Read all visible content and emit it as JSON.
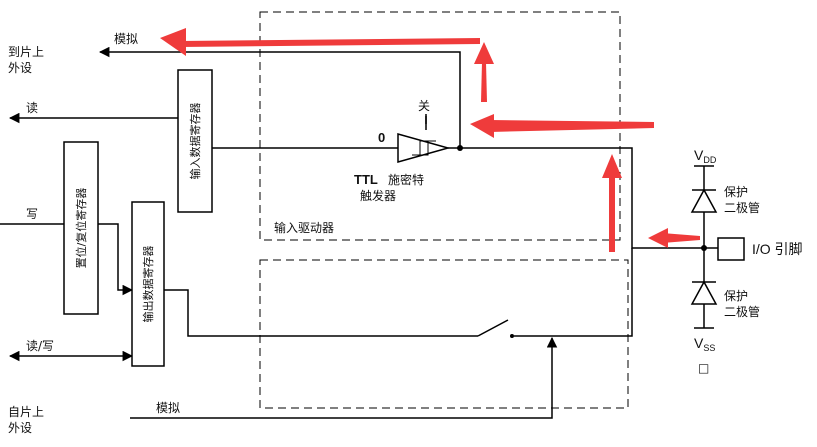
{
  "labels": {
    "analog_top": "模拟",
    "to_onchip_peripheral": [
      "到片上",
      "外设"
    ],
    "read": "读",
    "write": "写",
    "read_write": "读/写",
    "analog_bottom": "模拟",
    "from_onchip_peripheral": [
      "自片上",
      "外设"
    ],
    "input_driver": "输入驱动器",
    "off": "关",
    "zero": "0",
    "ttl": "TTL",
    "schmitt": [
      "施密特",
      "触发器"
    ],
    "vdd_main": "V",
    "vdd_sub": "DD",
    "vss_main": "V",
    "vss_sub": "SS",
    "protect_diode": [
      "保护",
      "二极管"
    ],
    "io_pin": "I/O 引脚",
    "small_square": "□"
  },
  "registers": {
    "input_data": "输入数据寄存器",
    "set_reset": "置位/复位寄存器",
    "output_data": "输出数据寄存器"
  },
  "colors": {
    "wire": "#000000",
    "highlight_arrow": "#ef3b3b"
  }
}
